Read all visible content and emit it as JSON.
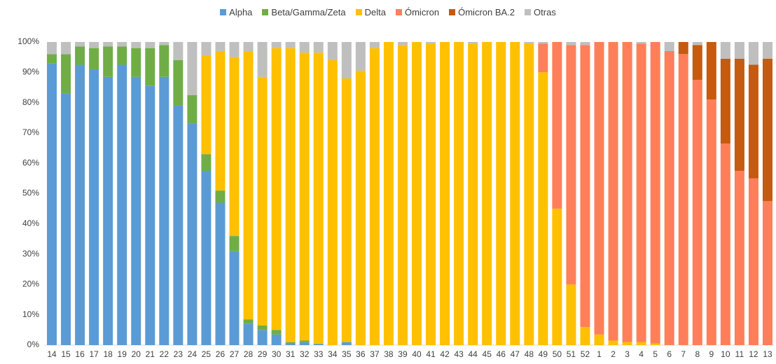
{
  "chart_data": {
    "type": "stacked-bar",
    "categories": [
      "14",
      "15",
      "16",
      "17",
      "18",
      "19",
      "20",
      "21",
      "22",
      "23",
      "24",
      "25",
      "26",
      "27",
      "28",
      "29",
      "30",
      "31",
      "32",
      "33",
      "34",
      "35",
      "36",
      "37",
      "38",
      "39",
      "40",
      "41",
      "42",
      "43",
      "44",
      "45",
      "46",
      "47",
      "48",
      "49",
      "50",
      "51",
      "52",
      "1",
      "2",
      "3",
      "4",
      "5",
      "6",
      "7",
      "8",
      "9",
      "10",
      "11",
      "12",
      "13"
    ],
    "ylim": [
      0,
      100
    ],
    "yticks": [
      {
        "value": 0,
        "label": "0%"
      },
      {
        "value": 10,
        "label": "10%"
      },
      {
        "value": 20,
        "label": "20%"
      },
      {
        "value": 30,
        "label": "30%"
      },
      {
        "value": 40,
        "label": "40%"
      },
      {
        "value": 50,
        "label": "50%"
      },
      {
        "value": 60,
        "label": "60%"
      },
      {
        "value": 70,
        "label": "70%"
      },
      {
        "value": 80,
        "label": "80%"
      },
      {
        "value": 90,
        "label": "90%"
      },
      {
        "value": 100,
        "label": "100%"
      }
    ],
    "legend_position": "top",
    "series": [
      {
        "name": "Alpha",
        "color": "#5b9bd5",
        "values": [
          93,
          83,
          92.5,
          91,
          88.5,
          92.5,
          88.5,
          85.5,
          88.5,
          79,
          73,
          57.5,
          47,
          31,
          7,
          5,
          3.5,
          0.7,
          1,
          0.3,
          0,
          1,
          0,
          0,
          0,
          0,
          0,
          0,
          0,
          0,
          0,
          0,
          0,
          0,
          0,
          0,
          0,
          0,
          0,
          0,
          0,
          0,
          0,
          0,
          0,
          0,
          0,
          0,
          0,
          0,
          0,
          0
        ]
      },
      {
        "name": "Beta/Gamma/Zeta",
        "color": "#70ad47",
        "values": [
          3,
          13,
          6,
          7,
          10,
          6,
          9.5,
          12.5,
          10.5,
          15,
          9.5,
          5.5,
          4,
          5,
          1.5,
          1.5,
          1.5,
          0.3,
          0.5,
          0.2,
          0,
          0,
          0,
          0,
          0,
          0,
          0,
          0,
          0,
          0,
          0,
          0,
          0,
          0,
          0,
          0,
          0,
          0,
          0,
          0,
          0,
          0,
          0,
          0,
          0,
          0,
          0,
          0,
          0,
          0,
          0,
          0
        ]
      },
      {
        "name": "Delta",
        "color": "#ffc000",
        "values": [
          0,
          0,
          0,
          0,
          0,
          0,
          0,
          0,
          0,
          0,
          0,
          32.5,
          46,
          59,
          88.5,
          82,
          93,
          97,
          95,
          96,
          94,
          87,
          90.5,
          98,
          100,
          99,
          100,
          99.5,
          100,
          100,
          99.5,
          100,
          100,
          100,
          99.5,
          90,
          45,
          20,
          6,
          3.5,
          1.5,
          1,
          1,
          0.5,
          0,
          0,
          0,
          0,
          0,
          0,
          0,
          0
        ]
      },
      {
        "name": "Ómicron",
        "color": "#ff7f5a",
        "values": [
          0,
          0,
          0,
          0,
          0,
          0,
          0,
          0,
          0,
          0,
          0,
          0,
          0,
          0,
          0,
          0,
          0,
          0,
          0,
          0,
          0,
          0,
          0,
          0,
          0,
          0,
          0,
          0,
          0,
          0,
          0,
          0,
          0,
          0,
          0,
          9.5,
          55,
          79,
          93,
          96.5,
          98.5,
          99,
          98.5,
          99.5,
          97,
          96,
          87.5,
          81,
          66.5,
          57.5,
          55,
          47.5
        ]
      },
      {
        "name": "Ómicron BA.2",
        "color": "#c55a11",
        "values": [
          0,
          0,
          0,
          0,
          0,
          0,
          0,
          0,
          0,
          0,
          0,
          0,
          0,
          0,
          0,
          0,
          0,
          0,
          0,
          0,
          0,
          0,
          0,
          0,
          0,
          0,
          0,
          0,
          0,
          0,
          0,
          0,
          0,
          0,
          0,
          0,
          0,
          0,
          0,
          0,
          0,
          0,
          0,
          0,
          0,
          4,
          11.5,
          19,
          28,
          37,
          37.5,
          47
        ]
      },
      {
        "name": "Otras",
        "color": "#bfbfbf",
        "values": [
          4,
          4,
          1.5,
          2,
          1.5,
          1.5,
          2,
          2,
          1,
          6,
          17.5,
          4.5,
          3,
          5,
          3,
          11.5,
          2,
          2,
          3.5,
          3.5,
          6,
          12,
          9.5,
          2,
          0,
          1,
          0,
          0.5,
          0,
          0,
          0.5,
          0,
          0,
          0,
          0.5,
          0.5,
          0,
          1,
          1,
          0,
          0,
          0,
          0.5,
          0,
          3,
          0,
          1,
          0,
          5.5,
          5.5,
          7.5,
          5.5
        ]
      }
    ]
  }
}
